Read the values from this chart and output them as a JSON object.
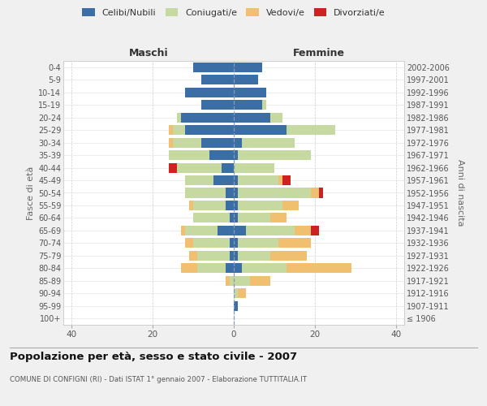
{
  "age_groups": [
    "100+",
    "95-99",
    "90-94",
    "85-89",
    "80-84",
    "75-79",
    "70-74",
    "65-69",
    "60-64",
    "55-59",
    "50-54",
    "45-49",
    "40-44",
    "35-39",
    "30-34",
    "25-29",
    "20-24",
    "15-19",
    "10-14",
    "5-9",
    "0-4"
  ],
  "birth_years": [
    "≤ 1906",
    "1907-1911",
    "1912-1916",
    "1917-1921",
    "1922-1926",
    "1927-1931",
    "1932-1936",
    "1937-1941",
    "1942-1946",
    "1947-1951",
    "1952-1956",
    "1957-1961",
    "1962-1966",
    "1967-1971",
    "1972-1976",
    "1977-1981",
    "1982-1986",
    "1987-1991",
    "1992-1996",
    "1997-2001",
    "2002-2006"
  ],
  "maschi_celibi": [
    0,
    0,
    0,
    0,
    2,
    1,
    1,
    4,
    1,
    2,
    2,
    5,
    3,
    6,
    8,
    12,
    13,
    8,
    12,
    8,
    10
  ],
  "maschi_coniugati": [
    0,
    0,
    0,
    1,
    7,
    8,
    9,
    8,
    9,
    8,
    10,
    7,
    11,
    10,
    7,
    3,
    1,
    0,
    0,
    0,
    0
  ],
  "maschi_vedovi": [
    0,
    0,
    0,
    1,
    4,
    2,
    2,
    1,
    0,
    1,
    0,
    0,
    0,
    0,
    1,
    1,
    0,
    0,
    0,
    0,
    0
  ],
  "maschi_divorziati": [
    0,
    0,
    0,
    0,
    0,
    0,
    0,
    0,
    0,
    0,
    0,
    0,
    2,
    0,
    0,
    0,
    0,
    0,
    0,
    0,
    0
  ],
  "femmine_celibi": [
    0,
    1,
    0,
    0,
    2,
    1,
    1,
    3,
    1,
    1,
    1,
    1,
    0,
    1,
    2,
    13,
    9,
    7,
    8,
    6,
    7
  ],
  "femmine_coniugati": [
    0,
    0,
    1,
    4,
    11,
    8,
    10,
    12,
    8,
    11,
    18,
    10,
    10,
    18,
    13,
    12,
    3,
    1,
    0,
    0,
    0
  ],
  "femmine_vedovi": [
    0,
    0,
    2,
    5,
    16,
    9,
    8,
    4,
    4,
    4,
    2,
    1,
    0,
    0,
    0,
    0,
    0,
    0,
    0,
    0,
    0
  ],
  "femmine_divorziati": [
    0,
    0,
    0,
    0,
    0,
    0,
    0,
    2,
    0,
    0,
    1,
    2,
    0,
    0,
    0,
    0,
    0,
    0,
    0,
    0,
    0
  ],
  "color_celibi": "#3a6ea5",
  "color_coniugati": "#c5d9a0",
  "color_vedovi": "#f0c070",
  "color_divorziati": "#cc2222",
  "title": "Popolazione per età, sesso e stato civile - 2007",
  "subtitle": "COMUNE DI CONFIGNI (RI) - Dati ISTAT 1° gennaio 2007 - Elaborazione TUTTITALIA.IT",
  "label_maschi": "Maschi",
  "label_femmine": "Femmine",
  "ylabel_left": "Fasce di età",
  "ylabel_right": "Anni di nascita",
  "legend_labels": [
    "Celibi/Nubili",
    "Coniugati/e",
    "Vedovi/e",
    "Divorziati/e"
  ],
  "xlim": 42,
  "bg_color": "#f0f0f0",
  "plot_bg": "#ffffff"
}
